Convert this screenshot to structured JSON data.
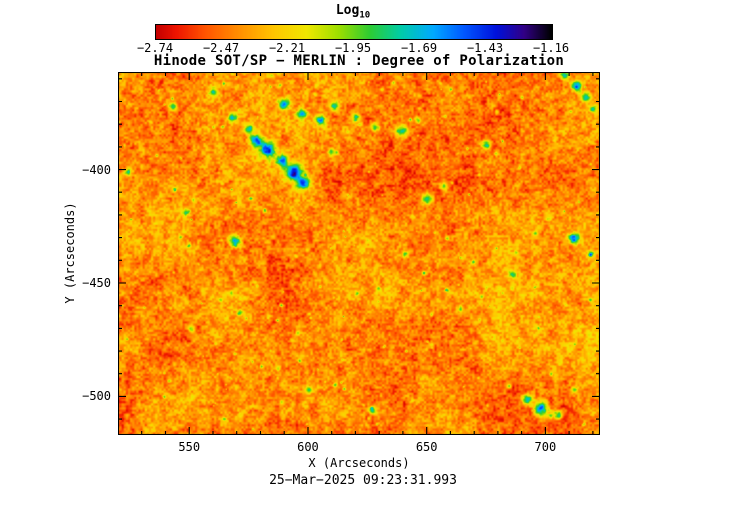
{
  "page": {
    "background": "#ffffff"
  },
  "chart_data": {
    "type": "heatmap",
    "title": "Hinode SOT/SP − MERLIN : Degree of Polarization",
    "xlabel": "X (Arcseconds)",
    "ylabel": "Y (Arcseconds)",
    "timestamp": "25−Mar−2025 09:23:31.993",
    "grid": false,
    "x_range": [
      520,
      723
    ],
    "y_range": [
      -517,
      -357
    ],
    "x_major_ticks": [
      550,
      600,
      650,
      700
    ],
    "x_tick_labels": [
      "550",
      "600",
      "650",
      "700"
    ],
    "y_major_ticks": [
      -400,
      -450,
      -500
    ],
    "y_tick_labels": [
      "−400",
      "−450",
      "−500"
    ],
    "minor_tick_step": 10,
    "colorbar": {
      "label_main": "Log",
      "label_sub": "10",
      "tick_labels": [
        "−2.74",
        "−2.47",
        "−2.21",
        "−1.95",
        "−1.69",
        "−1.43",
        "−1.16"
      ],
      "tick_values": [
        -2.74,
        -2.47,
        -2.21,
        -1.95,
        -1.69,
        -1.43,
        -1.16
      ],
      "value_range": [
        -2.74,
        -1.16
      ],
      "orientation": "horizontal"
    },
    "colormap_stops": [
      [
        0.0,
        "#c40000"
      ],
      [
        0.05,
        "#ee1500"
      ],
      [
        0.12,
        "#ff5200"
      ],
      [
        0.2,
        "#ff8a00"
      ],
      [
        0.3,
        "#ffc800"
      ],
      [
        0.38,
        "#f0e800"
      ],
      [
        0.46,
        "#9fdf00"
      ],
      [
        0.54,
        "#2ecc33"
      ],
      [
        0.62,
        "#00ccaa"
      ],
      [
        0.7,
        "#00aaff"
      ],
      [
        0.78,
        "#0057ff"
      ],
      [
        0.86,
        "#0012dd"
      ],
      [
        0.93,
        "#320087"
      ],
      [
        1.0,
        "#000000"
      ]
    ],
    "description": "Granular solar map, mostly orange/yellow (log10 degree of polarization ≈ −2.6 to −2.0) with sparse green-cyan-blue patches marking stronger polarization (log10 ≈ −1.7 to −1.2).",
    "features": [
      {
        "x": 578,
        "y": -387,
        "r": 2.6,
        "amp": 0.55
      },
      {
        "x": 583,
        "y": -391,
        "r": 3.0,
        "amp": 0.62
      },
      {
        "x": 589,
        "y": -396,
        "r": 2.4,
        "amp": 0.5
      },
      {
        "x": 594,
        "y": -401,
        "r": 3.4,
        "amp": 0.66
      },
      {
        "x": 598,
        "y": -406,
        "r": 2.6,
        "amp": 0.56
      },
      {
        "x": 575,
        "y": -382,
        "r": 2.0,
        "amp": 0.45
      },
      {
        "x": 568,
        "y": -377,
        "r": 1.8,
        "amp": 0.4
      },
      {
        "x": 590,
        "y": -371,
        "r": 2.2,
        "amp": 0.5
      },
      {
        "x": 597,
        "y": -375,
        "r": 2.0,
        "amp": 0.45
      },
      {
        "x": 605,
        "y": -378,
        "r": 2.2,
        "amp": 0.5
      },
      {
        "x": 611,
        "y": -372,
        "r": 1.8,
        "amp": 0.42
      },
      {
        "x": 620,
        "y": -377,
        "r": 2.0,
        "amp": 0.46
      },
      {
        "x": 628,
        "y": -381,
        "r": 1.8,
        "amp": 0.4
      },
      {
        "x": 639,
        "y": -383,
        "r": 2.4,
        "amp": 0.52
      },
      {
        "x": 646,
        "y": -378,
        "r": 1.6,
        "amp": 0.38
      },
      {
        "x": 560,
        "y": -366,
        "r": 1.8,
        "amp": 0.42
      },
      {
        "x": 543,
        "y": -372,
        "r": 1.6,
        "amp": 0.36
      },
      {
        "x": 524,
        "y": -401,
        "r": 1.5,
        "amp": 0.38
      },
      {
        "x": 569,
        "y": -431,
        "r": 2.4,
        "amp": 0.58
      },
      {
        "x": 548,
        "y": -419,
        "r": 1.5,
        "amp": 0.34
      },
      {
        "x": 610,
        "y": -392,
        "r": 1.6,
        "amp": 0.36
      },
      {
        "x": 650,
        "y": -413,
        "r": 2.4,
        "amp": 0.5
      },
      {
        "x": 657,
        "y": -407,
        "r": 1.6,
        "amp": 0.36
      },
      {
        "x": 675,
        "y": -389,
        "r": 1.8,
        "amp": 0.46
      },
      {
        "x": 708,
        "y": -358,
        "r": 1.8,
        "amp": 0.46
      },
      {
        "x": 713,
        "y": -363,
        "r": 2.2,
        "amp": 0.55
      },
      {
        "x": 717,
        "y": -368,
        "r": 2.0,
        "amp": 0.5
      },
      {
        "x": 720,
        "y": -373,
        "r": 1.6,
        "amp": 0.4
      },
      {
        "x": 712,
        "y": -430,
        "r": 2.4,
        "amp": 0.55
      },
      {
        "x": 719,
        "y": -437,
        "r": 1.6,
        "amp": 0.38
      },
      {
        "x": 692,
        "y": -501,
        "r": 2.4,
        "amp": 0.52
      },
      {
        "x": 698,
        "y": -505,
        "r": 2.8,
        "amp": 0.6
      },
      {
        "x": 705,
        "y": -508,
        "r": 2.0,
        "amp": 0.45
      },
      {
        "x": 712,
        "y": -497,
        "r": 1.5,
        "amp": 0.36
      },
      {
        "x": 600,
        "y": -497,
        "r": 1.5,
        "amp": 0.34
      },
      {
        "x": 627,
        "y": -506,
        "r": 1.5,
        "amp": 0.34
      },
      {
        "x": 571,
        "y": -463,
        "r": 1.4,
        "amp": 0.3
      },
      {
        "x": 664,
        "y": -461,
        "r": 1.4,
        "amp": 0.3
      },
      {
        "x": 686,
        "y": -446,
        "r": 1.5,
        "amp": 0.34
      },
      {
        "x": 641,
        "y": -437,
        "r": 1.4,
        "amp": 0.3
      },
      {
        "x": 551,
        "y": -470,
        "r": 1.4,
        "amp": 0.32
      }
    ]
  }
}
